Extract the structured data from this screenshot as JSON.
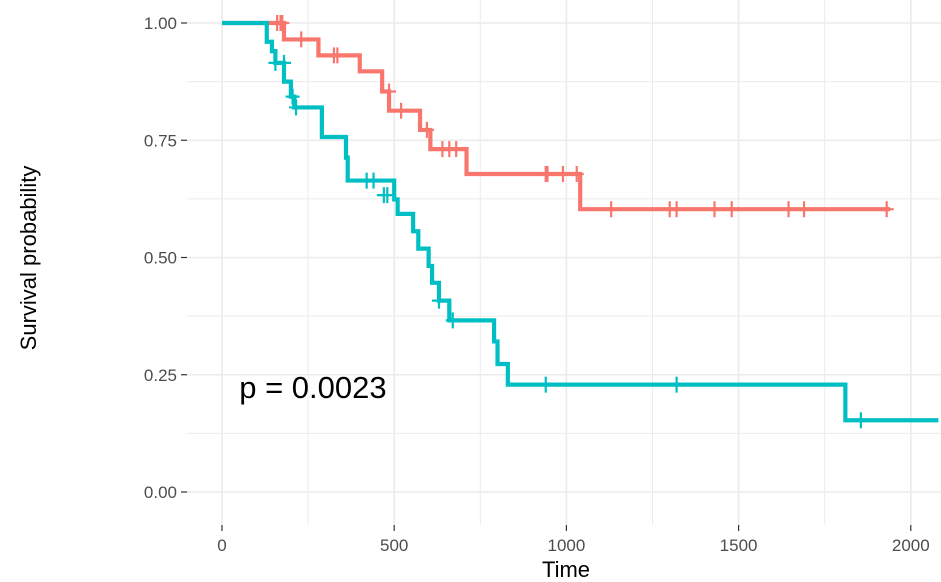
{
  "chart_data": {
    "type": "line",
    "xlabel": "Time",
    "ylabel": "Survival probability",
    "xlim": [
      0,
      2000
    ],
    "ylim": [
      0,
      1
    ],
    "x_ticks": [
      0,
      500,
      1000,
      1500,
      2000
    ],
    "x_tick_labels": [
      "0",
      "500",
      "1000",
      "1500",
      "2000"
    ],
    "y_ticks": [
      0,
      0.25,
      0.5,
      0.75,
      1
    ],
    "y_tick_labels": [
      "0.00",
      "0.25",
      "0.50",
      "0.75",
      "1.00"
    ],
    "grid": true,
    "legend": "none",
    "annotation": {
      "text": "p = 0.0023",
      "x": 50,
      "y": 0.2
    },
    "series": [
      {
        "color": "#F8766D",
        "steps": [
          [
            0,
            1.0
          ],
          [
            180,
            0.965
          ],
          [
            280,
            0.931
          ],
          [
            400,
            0.897
          ],
          [
            465,
            0.854
          ],
          [
            485,
            0.813
          ],
          [
            575,
            0.772
          ],
          [
            605,
            0.731
          ],
          [
            710,
            0.678
          ],
          [
            1040,
            0.603
          ],
          [
            1940,
            0.603
          ]
        ],
        "censors": [
          [
            160,
            1.0
          ],
          [
            170,
            1.0
          ],
          [
            175,
            1.0
          ],
          [
            230,
            0.965
          ],
          [
            325,
            0.931
          ],
          [
            335,
            0.931
          ],
          [
            485,
            0.854
          ],
          [
            520,
            0.813
          ],
          [
            595,
            0.772
          ],
          [
            640,
            0.731
          ],
          [
            660,
            0.731
          ],
          [
            680,
            0.731
          ],
          [
            940,
            0.678
          ],
          [
            945,
            0.678
          ],
          [
            990,
            0.678
          ],
          [
            1030,
            0.678
          ],
          [
            1130,
            0.603
          ],
          [
            1300,
            0.603
          ],
          [
            1320,
            0.603
          ],
          [
            1430,
            0.603
          ],
          [
            1480,
            0.603
          ],
          [
            1645,
            0.603
          ],
          [
            1690,
            0.603
          ],
          [
            1930,
            0.603
          ]
        ]
      },
      {
        "color": "#00BFC4",
        "steps": [
          [
            0,
            1.0
          ],
          [
            130,
            0.96
          ],
          [
            145,
            0.94
          ],
          [
            155,
            0.915
          ],
          [
            180,
            0.875
          ],
          [
            200,
            0.843
          ],
          [
            210,
            0.82
          ],
          [
            290,
            0.757
          ],
          [
            360,
            0.713
          ],
          [
            365,
            0.664
          ],
          [
            500,
            0.624
          ],
          [
            510,
            0.593
          ],
          [
            555,
            0.556
          ],
          [
            570,
            0.519
          ],
          [
            600,
            0.482
          ],
          [
            610,
            0.446
          ],
          [
            630,
            0.408
          ],
          [
            660,
            0.366
          ],
          [
            790,
            0.321
          ],
          [
            800,
            0.273
          ],
          [
            830,
            0.229
          ],
          [
            1810,
            0.153
          ],
          [
            2080,
            0.153
          ]
        ],
        "censors": [
          [
            155,
            0.915
          ],
          [
            180,
            0.915
          ],
          [
            205,
            0.843
          ],
          [
            215,
            0.82
          ],
          [
            420,
            0.664
          ],
          [
            440,
            0.664
          ],
          [
            470,
            0.633
          ],
          [
            480,
            0.633
          ],
          [
            630,
            0.408
          ],
          [
            670,
            0.366
          ],
          [
            940,
            0.229
          ],
          [
            1320,
            0.229
          ],
          [
            1855,
            0.153
          ]
        ]
      }
    ]
  }
}
